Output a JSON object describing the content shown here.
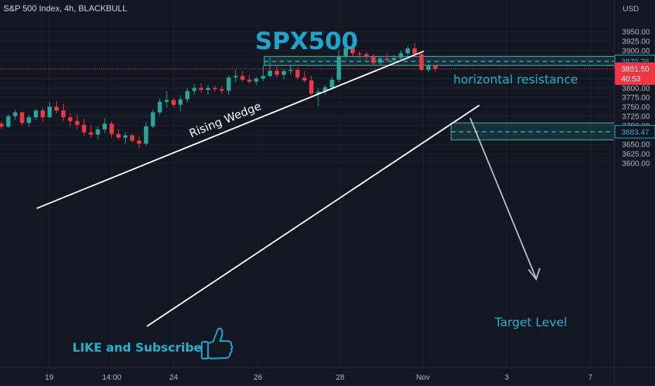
{
  "header": {
    "symbol_label": "S&P 500 Index, 4h, BLACKBULL"
  },
  "chart_data": {
    "type": "candlestick",
    "title": "SPX500",
    "currency": "USD",
    "y_ticks": [
      3950,
      3925,
      3900,
      3875,
      3850,
      3825,
      3800,
      3775,
      3750,
      3725,
      3700,
      3675,
      3650,
      3625,
      3600
    ],
    "y_tick_labels": [
      "3950.00",
      "3925.00",
      "3900.00",
      "3875.00",
      "3850.00",
      "3825.00",
      "3800.00",
      "3775.00",
      "3750.00",
      "3725.00",
      "3700.00",
      "3675.00",
      "3650.00",
      "3625.00",
      "3600.00"
    ],
    "x_tick_labels": [
      "19",
      "14:00",
      "24",
      "26",
      "28",
      "Nov",
      "3",
      "7"
    ],
    "price_badges": [
      {
        "value": "3870.76",
        "kind": "resistance"
      },
      {
        "value": "3851.50",
        "kind": "last",
        "countdown": "40:53"
      },
      {
        "value": "3683.47",
        "kind": "target"
      }
    ],
    "candles": [
      [
        3705,
        3712,
        3690,
        3697
      ],
      [
        3697,
        3730,
        3694,
        3725
      ],
      [
        3725,
        3742,
        3715,
        3735
      ],
      [
        3735,
        3738,
        3700,
        3707
      ],
      [
        3707,
        3728,
        3698,
        3722
      ],
      [
        3722,
        3745,
        3715,
        3740
      ],
      [
        3740,
        3748,
        3710,
        3722
      ],
      [
        3722,
        3762,
        3720,
        3750
      ],
      [
        3750,
        3765,
        3733,
        3740
      ],
      [
        3740,
        3758,
        3712,
        3722
      ],
      [
        3722,
        3732,
        3698,
        3712
      ],
      [
        3712,
        3730,
        3688,
        3702
      ],
      [
        3702,
        3718,
        3672,
        3682
      ],
      [
        3682,
        3702,
        3668,
        3676
      ],
      [
        3676,
        3698,
        3664,
        3690
      ],
      [
        3690,
        3720,
        3680,
        3705
      ],
      [
        3705,
        3712,
        3668,
        3678
      ],
      [
        3678,
        3690,
        3662,
        3668
      ],
      [
        3668,
        3682,
        3652,
        3674
      ],
      [
        3674,
        3678,
        3655,
        3660
      ],
      [
        3660,
        3672,
        3640,
        3652
      ],
      [
        3652,
        3710,
        3646,
        3698
      ],
      [
        3698,
        3742,
        3694,
        3735
      ],
      [
        3735,
        3772,
        3728,
        3763
      ],
      [
        3763,
        3792,
        3748,
        3768
      ],
      [
        3768,
        3775,
        3748,
        3755
      ],
      [
        3755,
        3780,
        3738,
        3770
      ],
      [
        3770,
        3800,
        3762,
        3792
      ],
      [
        3792,
        3810,
        3782,
        3800
      ],
      [
        3800,
        3812,
        3788,
        3795
      ],
      [
        3795,
        3808,
        3782,
        3800
      ],
      [
        3800,
        3806,
        3790,
        3797
      ],
      [
        3797,
        3805,
        3785,
        3793
      ],
      [
        3793,
        3832,
        3782,
        3828
      ],
      [
        3828,
        3848,
        3815,
        3832
      ],
      [
        3832,
        3845,
        3816,
        3822
      ],
      [
        3822,
        3835,
        3812,
        3817
      ],
      [
        3817,
        3830,
        3808,
        3825
      ],
      [
        3825,
        3860,
        3818,
        3832
      ],
      [
        3832,
        3882,
        3828,
        3846
      ],
      [
        3846,
        3858,
        3828,
        3835
      ],
      [
        3835,
        3850,
        3822,
        3845
      ],
      [
        3845,
        3862,
        3836,
        3848
      ],
      [
        3848,
        3855,
        3822,
        3828
      ],
      [
        3828,
        3845,
        3815,
        3820
      ],
      [
        3820,
        3832,
        3780,
        3785
      ],
      [
        3785,
        3800,
        3752,
        3790
      ],
      [
        3790,
        3808,
        3782,
        3802
      ],
      [
        3802,
        3830,
        3795,
        3822
      ],
      [
        3822,
        3900,
        3815,
        3885
      ],
      [
        3885,
        3915,
        3880,
        3906
      ],
      [
        3906,
        3912,
        3885,
        3892
      ],
      [
        3892,
        3898,
        3880,
        3890
      ],
      [
        3890,
        3895,
        3876,
        3884
      ],
      [
        3884,
        3890,
        3862,
        3867
      ],
      [
        3867,
        3885,
        3860,
        3878
      ],
      [
        3878,
        3893,
        3870,
        3874
      ],
      [
        3874,
        3888,
        3865,
        3880
      ],
      [
        3880,
        3900,
        3872,
        3892
      ],
      [
        3892,
        3912,
        3886,
        3905
      ],
      [
        3905,
        3920,
        3888,
        3890
      ],
      [
        3890,
        3895,
        3845,
        3848
      ],
      [
        3848,
        3864,
        3842,
        3859
      ],
      [
        3859,
        3862,
        3844,
        3851
      ]
    ],
    "resistance_zone": {
      "label": "horizontal resistance",
      "top": 3884,
      "bottom": 3860,
      "mid": 3870.76
    },
    "target_zone": {
      "label": "Target Level",
      "top": 3707,
      "bottom": 3662,
      "mid": 3683.47
    },
    "pattern_label": "Rising Wedge",
    "cta_label": "LIKE and Subscribe"
  }
}
